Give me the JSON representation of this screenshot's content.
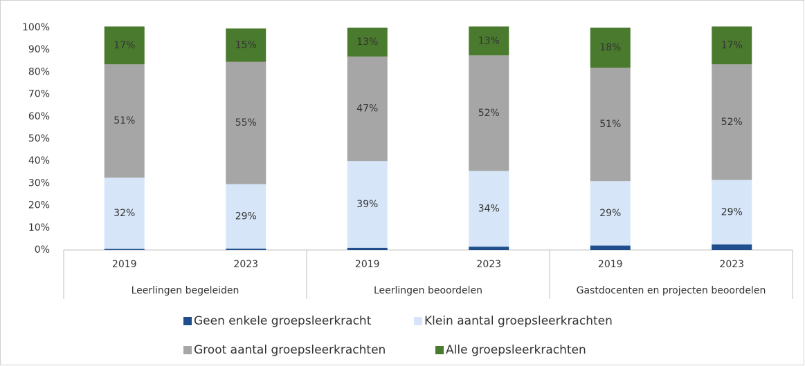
{
  "chart_data": {
    "type": "stacked_bar",
    "categories": [
      "2019",
      "2023",
      "2019",
      "2023",
      "2019",
      "2023"
    ],
    "groups": [
      "Leerlingen begeleiden",
      "Leerlingen beoordelen",
      "Gastdocenten en projecten beoordelen"
    ],
    "series": [
      {
        "name": "Geen enkele groepsleerkracht",
        "color": "#1f4e8c",
        "values": [
          0.5,
          0.6,
          1,
          1.5,
          2,
          2.5
        ]
      },
      {
        "name": "Klein aantal groepsleerkrachten",
        "color": "#d6e6f8",
        "values": [
          32,
          29,
          39,
          34,
          29,
          29
        ],
        "value_labels": [
          "32%",
          "29%",
          "39%",
          "34%",
          "29%",
          "29%"
        ]
      },
      {
        "name": "Groot aantal groepsleerkrachten",
        "color": "#a6a6a6",
        "values": [
          51,
          55,
          47,
          52,
          51,
          52
        ],
        "value_labels": [
          "51%",
          "55%",
          "47%",
          "52%",
          "51%",
          "52%"
        ]
      },
      {
        "name": "Alle groepsleerkrachten",
        "color": "#4a7a2e",
        "values": [
          17,
          15,
          13,
          13,
          18,
          17
        ],
        "value_labels": [
          "17%",
          "15%",
          "13%",
          "13%",
          "18%",
          "17%"
        ]
      }
    ],
    "ylim": [
      0,
      100
    ],
    "yticks": [
      {
        "value": 0,
        "label": "0%"
      },
      {
        "value": 10,
        "label": "10%"
      },
      {
        "value": 20,
        "label": "20%"
      },
      {
        "value": 30,
        "label": "30%"
      },
      {
        "value": 40,
        "label": "40%"
      },
      {
        "value": 50,
        "label": "50%"
      },
      {
        "value": 60,
        "label": "60%"
      },
      {
        "value": 70,
        "label": "70%"
      },
      {
        "value": 80,
        "label": "80%"
      },
      {
        "value": 90,
        "label": "90%"
      },
      {
        "value": 100,
        "label": "100%"
      }
    ],
    "grid": false
  }
}
